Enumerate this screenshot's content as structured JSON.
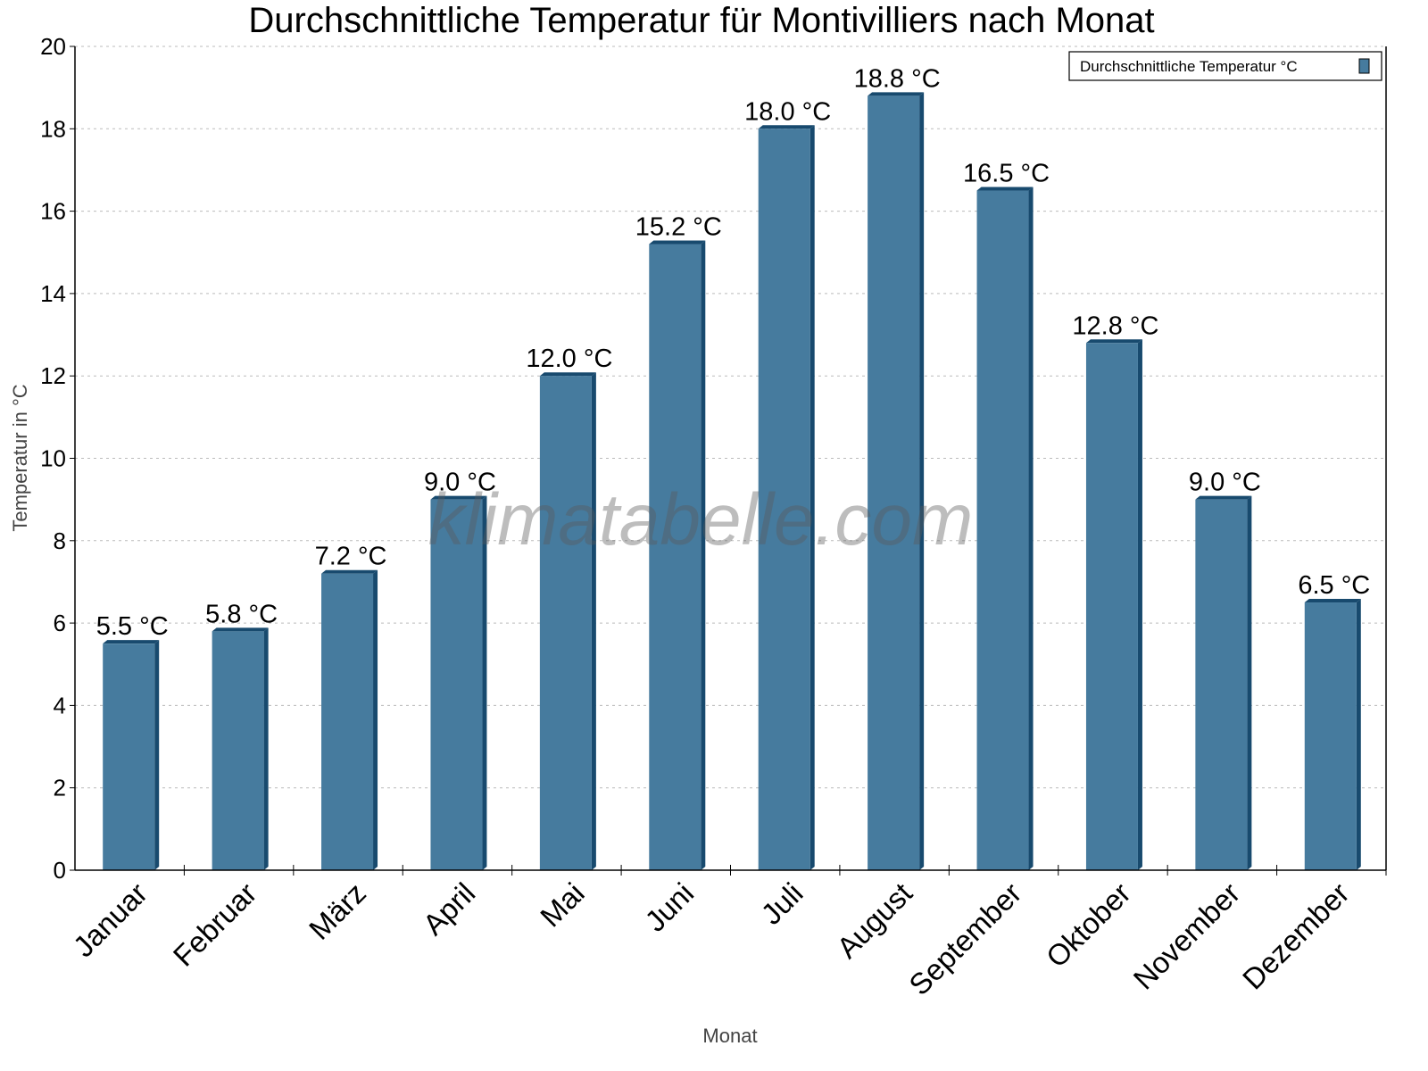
{
  "chart_data": {
    "type": "bar",
    "title": "Durchschnittliche Temperatur für Montivilliers nach Monat",
    "xlabel": "Monat",
    "ylabel": "Temperatur in °C",
    "categories": [
      "Januar",
      "Februar",
      "März",
      "April",
      "Mai",
      "Juni",
      "Juli",
      "August",
      "September",
      "Oktober",
      "November",
      "Dezember"
    ],
    "series": [
      {
        "name": "Durchschnittliche Temperatur °C",
        "values": [
          5.5,
          5.8,
          7.2,
          9.0,
          12.0,
          15.2,
          18.0,
          18.8,
          16.5,
          12.8,
          9.0,
          6.5
        ],
        "color": "#467b9e",
        "side_color": "#184a6e"
      }
    ],
    "data_labels": [
      "5.5 °C",
      "5.8 °C",
      "7.2 °C",
      "9.0 °C",
      "12.0 °C",
      "15.2 °C",
      "18.0 °C",
      "18.8 °C",
      "16.5 °C",
      "12.8 °C",
      "9.0 °C",
      "6.5 °C"
    ],
    "ylim": [
      0,
      20
    ],
    "yticks": [
      "0",
      "2",
      "4",
      "6",
      "8",
      "10",
      "12",
      "14",
      "16",
      "18",
      "20"
    ],
    "grid": true,
    "legend_position": "top-right",
    "watermark": "klimatabelle.com"
  }
}
